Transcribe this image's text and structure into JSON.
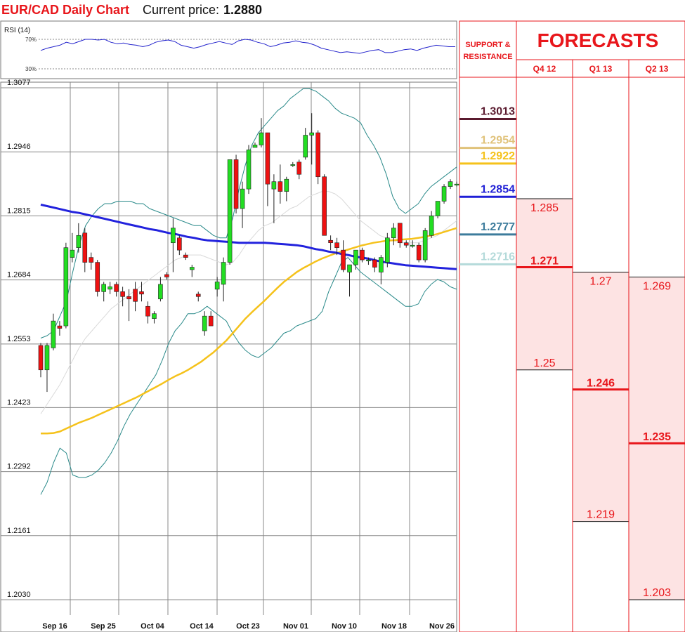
{
  "header": {
    "title": "EUR/CAD Daily Chart",
    "price_label": "Current price:",
    "price_value": "1.2880"
  },
  "rsi": {
    "label": "RSI (14)",
    "level_high": "70%",
    "level_low": "30%",
    "values": [
      55,
      58,
      60,
      62,
      66,
      64,
      67,
      70,
      70,
      69,
      70,
      66,
      64,
      65,
      63,
      62,
      60,
      62,
      66,
      68,
      69,
      67,
      62,
      60,
      58,
      60,
      63,
      65,
      67,
      65,
      63,
      68,
      70,
      69,
      66,
      64,
      60,
      62,
      65,
      66,
      68,
      66,
      65,
      62,
      58,
      56,
      54,
      52,
      53,
      52,
      51,
      53,
      55,
      56,
      52,
      52,
      54,
      56,
      57,
      55,
      58,
      60,
      62,
      61,
      60,
      60
    ]
  },
  "chart_data": {
    "type": "candlestick",
    "title": "EUR/CAD Daily Chart",
    "y_ticks": [
      "1.3077",
      "1.2946",
      "1.2815",
      "1.2684",
      "1.2553",
      "1.2423",
      "1.2292",
      "1.2161",
      "1.2030"
    ],
    "ylim": [
      1.203,
      1.3077
    ],
    "x_ticks": [
      "Sep 16",
      "Sep 25",
      "Oct 04",
      "Oct 14",
      "Oct 23",
      "Nov 01",
      "Nov 10",
      "Nov 18",
      "Nov 26"
    ],
    "grid": true,
    "candles": [
      {
        "d": "Sep 11",
        "o": 1.255,
        "h": 1.2555,
        "l": 1.2485,
        "c": 1.25
      },
      {
        "d": "Sep 12",
        "o": 1.25,
        "h": 1.2555,
        "l": 1.2455,
        "c": 1.255
      },
      {
        "d": "Sep 13",
        "o": 1.2545,
        "h": 1.2615,
        "l": 1.254,
        "c": 1.26
      },
      {
        "d": "Sep 16",
        "o": 1.259,
        "h": 1.26,
        "l": 1.257,
        "c": 1.2585
      },
      {
        "d": "Sep 17",
        "o": 1.259,
        "h": 1.276,
        "l": 1.2585,
        "c": 1.275
      },
      {
        "d": "Sep 18",
        "o": 1.273,
        "h": 1.278,
        "l": 1.272,
        "c": 1.2745
      },
      {
        "d": "Sep 19",
        "o": 1.275,
        "h": 1.28,
        "l": 1.274,
        "c": 1.2775
      },
      {
        "d": "Sep 20",
        "o": 1.278,
        "h": 1.279,
        "l": 1.27,
        "c": 1.272
      },
      {
        "d": "Sep 23",
        "o": 1.273,
        "h": 1.274,
        "l": 1.2705,
        "c": 1.272
      },
      {
        "d": "Sep 24",
        "o": 1.272,
        "h": 1.2725,
        "l": 1.265,
        "c": 1.266
      },
      {
        "d": "Sep 25",
        "o": 1.266,
        "h": 1.268,
        "l": 1.264,
        "c": 1.2675
      },
      {
        "d": "Sep 26",
        "o": 1.2665,
        "h": 1.268,
        "l": 1.2655,
        "c": 1.267
      },
      {
        "d": "Sep 27",
        "o": 1.2675,
        "h": 1.268,
        "l": 1.265,
        "c": 1.266
      },
      {
        "d": "Sep 30",
        "o": 1.266,
        "h": 1.267,
        "l": 1.263,
        "c": 1.265
      },
      {
        "d": "Oct 01",
        "o": 1.265,
        "h": 1.2665,
        "l": 1.26,
        "c": 1.2645
      },
      {
        "d": "Oct 02",
        "o": 1.2665,
        "h": 1.268,
        "l": 1.262,
        "c": 1.264
      },
      {
        "d": "Oct 03",
        "o": 1.266,
        "h": 1.268,
        "l": 1.264,
        "c": 1.2655
      },
      {
        "d": "Oct 04",
        "o": 1.263,
        "h": 1.264,
        "l": 1.2595,
        "c": 1.261
      },
      {
        "d": "Oct 07",
        "o": 1.2605,
        "h": 1.262,
        "l": 1.2595,
        "c": 1.2615
      },
      {
        "d": "Oct 08",
        "o": 1.2645,
        "h": 1.269,
        "l": 1.264,
        "c": 1.2675
      },
      {
        "d": "Oct 09",
        "o": 1.2695,
        "h": 1.27,
        "l": 1.2685,
        "c": 1.269
      },
      {
        "d": "Oct 10",
        "o": 1.276,
        "h": 1.281,
        "l": 1.27,
        "c": 1.279
      },
      {
        "d": "Oct 11",
        "o": 1.277,
        "h": 1.2775,
        "l": 1.2735,
        "c": 1.2745
      },
      {
        "d": "Oct 14",
        "o": 1.2735,
        "h": 1.274,
        "l": 1.2725,
        "c": 1.273
      },
      {
        "d": "Oct 15",
        "o": 1.2705,
        "h": 1.2715,
        "l": 1.269,
        "c": 1.271
      },
      {
        "d": "Oct 16",
        "o": 1.2655,
        "h": 1.266,
        "l": 1.264,
        "c": 1.265
      },
      {
        "d": "Oct 17",
        "o": 1.258,
        "h": 1.262,
        "l": 1.257,
        "c": 1.261
      },
      {
        "d": "Oct 18",
        "o": 1.261,
        "h": 1.262,
        "l": 1.259,
        "c": 1.259
      },
      {
        "d": "Oct 21",
        "o": 1.2665,
        "h": 1.269,
        "l": 1.265,
        "c": 1.268
      },
      {
        "d": "Oct 22",
        "o": 1.2675,
        "h": 1.273,
        "l": 1.264,
        "c": 1.272
      },
      {
        "d": "Oct 23",
        "o": 1.272,
        "h": 1.293,
        "l": 1.2715,
        "c": 1.293
      },
      {
        "d": "Oct 24",
        "o": 1.293,
        "h": 1.294,
        "l": 1.282,
        "c": 1.283
      },
      {
        "d": "Oct 25",
        "o": 1.283,
        "h": 1.2885,
        "l": 1.279,
        "c": 1.287
      },
      {
        "d": "Oct 28",
        "o": 1.287,
        "h": 1.296,
        "l": 1.286,
        "c": 1.295
      },
      {
        "d": "Oct 29",
        "o": 1.2955,
        "h": 1.2965,
        "l": 1.2955,
        "c": 1.296
      },
      {
        "d": "Oct 30",
        "o": 1.296,
        "h": 1.3015,
        "l": 1.2955,
        "c": 1.2985
      },
      {
        "d": "Oct 31",
        "o": 1.2985,
        "h": 1.2985,
        "l": 1.2835,
        "c": 1.288
      },
      {
        "d": "Nov 01",
        "o": 1.287,
        "h": 1.29,
        "l": 1.28,
        "c": 1.2885
      },
      {
        "d": "Nov 04",
        "o": 1.2885,
        "h": 1.292,
        "l": 1.284,
        "c": 1.2865
      },
      {
        "d": "Nov 05",
        "o": 1.2865,
        "h": 1.2895,
        "l": 1.2845,
        "c": 1.289
      },
      {
        "d": "Nov 06",
        "o": 1.292,
        "h": 1.2925,
        "l": 1.2915,
        "c": 1.292
      },
      {
        "d": "Nov 07",
        "o": 1.2925,
        "h": 1.293,
        "l": 1.289,
        "c": 1.29
      },
      {
        "d": "Nov 08",
        "o": 1.2935,
        "h": 1.2995,
        "l": 1.293,
        "c": 1.298
      },
      {
        "d": "Nov 11",
        "o": 1.298,
        "h": 1.3025,
        "l": 1.292,
        "c": 1.2985
      },
      {
        "d": "Nov 12",
        "o": 1.2985,
        "h": 1.299,
        "l": 1.288,
        "c": 1.2895
      },
      {
        "d": "Nov 13",
        "o": 1.2895,
        "h": 1.29,
        "l": 1.2775,
        "c": 1.2775
      },
      {
        "d": "Nov 14",
        "o": 1.2765,
        "h": 1.2775,
        "l": 1.2745,
        "c": 1.276
      },
      {
        "d": "Nov 15",
        "o": 1.276,
        "h": 1.277,
        "l": 1.2735,
        "c": 1.275
      },
      {
        "d": "Nov 18",
        "o": 1.2745,
        "h": 1.2765,
        "l": 1.27,
        "c": 1.2705
      },
      {
        "d": "Nov 19",
        "o": 1.27,
        "h": 1.2715,
        "l": 1.265,
        "c": 1.2715
      },
      {
        "d": "Nov 20",
        "o": 1.2715,
        "h": 1.2745,
        "l": 1.2705,
        "c": 1.2745
      },
      {
        "d": "Nov 21",
        "o": 1.2745,
        "h": 1.275,
        "l": 1.272,
        "c": 1.2725
      },
      {
        "d": "Nov 22",
        "o": 1.2725,
        "h": 1.273,
        "l": 1.2715,
        "c": 1.2725
      },
      {
        "d": "Nov 25",
        "o": 1.2725,
        "h": 1.273,
        "l": 1.27,
        "c": 1.271
      },
      {
        "d": "Nov 26",
        "o": 1.27,
        "h": 1.2735,
        "l": 1.2675,
        "c": 1.273
      },
      {
        "d": "Nov 27",
        "o": 1.272,
        "h": 1.278,
        "l": 1.271,
        "c": 1.277
      },
      {
        "d": "Nov 28",
        "o": 1.277,
        "h": 1.28,
        "l": 1.2755,
        "c": 1.279
      },
      {
        "d": "Nov 29",
        "o": 1.28,
        "h": 1.28,
        "l": 1.275,
        "c": 1.276
      },
      {
        "d": "Dec 02",
        "o": 1.276,
        "h": 1.2765,
        "l": 1.275,
        "c": 1.2755
      },
      {
        "d": "Dec 03",
        "o": 1.2755,
        "h": 1.2765,
        "l": 1.275,
        "c": 1.2755
      },
      {
        "d": "Dec 04",
        "o": 1.2755,
        "h": 1.276,
        "l": 1.272,
        "c": 1.2725
      },
      {
        "d": "Dec 05",
        "o": 1.2725,
        "h": 1.279,
        "l": 1.272,
        "c": 1.2785
      },
      {
        "d": "Dec 06",
        "o": 1.2775,
        "h": 1.2825,
        "l": 1.277,
        "c": 1.2815
      },
      {
        "d": "Dec 09",
        "o": 1.2815,
        "h": 1.2845,
        "l": 1.281,
        "c": 1.2845
      },
      {
        "d": "Dec 10",
        "o": 1.2845,
        "h": 1.288,
        "l": 1.284,
        "c": 1.2875
      },
      {
        "d": "Dec 11",
        "o": 1.2875,
        "h": 1.289,
        "l": 1.287,
        "c": 1.2885
      },
      {
        "d": "Dec 12",
        "o": 1.288,
        "h": 1.2885,
        "l": 1.2875,
        "c": 1.288
      }
    ],
    "lines": {
      "bollinger_upper": [
        1.2565,
        1.257,
        1.258,
        1.261,
        1.264,
        1.27,
        1.2755,
        1.2795,
        1.2815,
        1.283,
        1.284,
        1.284,
        1.2845,
        1.2845,
        1.2845,
        1.284,
        1.284,
        1.283,
        1.2825,
        1.282,
        1.2815,
        1.281,
        1.2805,
        1.28,
        1.2795,
        1.2795,
        1.2785,
        1.2775,
        1.277,
        1.277,
        1.281,
        1.287,
        1.292,
        1.296,
        1.2985,
        1.3,
        1.3015,
        1.303,
        1.304,
        1.3055,
        1.3065,
        1.3075,
        1.3075,
        1.307,
        1.306,
        1.305,
        1.3035,
        1.3025,
        1.302,
        1.3015,
        1.3005,
        1.298,
        1.296,
        1.2935,
        1.29,
        1.2855,
        1.283,
        1.282,
        1.283,
        1.284,
        1.286,
        1.2875,
        1.2885,
        1.2895,
        1.2905,
        1.2915
      ],
      "bollinger_mid": [
        1.241,
        1.243,
        1.245,
        1.247,
        1.2495,
        1.252,
        1.2545,
        1.2565,
        1.258,
        1.2595,
        1.261,
        1.2625,
        1.2635,
        1.2645,
        1.2655,
        1.2665,
        1.2675,
        1.2685,
        1.2695,
        1.2705,
        1.2715,
        1.2725,
        1.273,
        1.2735,
        1.2735,
        1.2735,
        1.273,
        1.2725,
        1.272,
        1.2715,
        1.272,
        1.2735,
        1.2755,
        1.277,
        1.2785,
        1.2795,
        1.28,
        1.281,
        1.282,
        1.283,
        1.2835,
        1.2845,
        1.2855,
        1.286,
        1.2865,
        1.2865,
        1.286,
        1.285,
        1.2835,
        1.282,
        1.2805,
        1.2795,
        1.2785,
        1.2775,
        1.277,
        1.2765,
        1.276,
        1.276,
        1.276,
        1.276,
        1.2765,
        1.277,
        1.2775,
        1.2785,
        1.2795,
        1.2805
      ],
      "bollinger_lower": [
        1.2245,
        1.227,
        1.231,
        1.234,
        1.233,
        1.2285,
        1.228,
        1.228,
        1.2285,
        1.2295,
        1.231,
        1.233,
        1.2355,
        1.2385,
        1.241,
        1.243,
        1.245,
        1.247,
        1.249,
        1.252,
        1.2555,
        1.258,
        1.2595,
        1.2615,
        1.2615,
        1.262,
        1.263,
        1.262,
        1.261,
        1.26,
        1.2575,
        1.2555,
        1.254,
        1.253,
        1.2525,
        1.2535,
        1.2545,
        1.256,
        1.2575,
        1.258,
        1.259,
        1.2595,
        1.26,
        1.2605,
        1.262,
        1.266,
        1.269,
        1.272,
        1.273,
        1.2715,
        1.27,
        1.269,
        1.268,
        1.267,
        1.266,
        1.265,
        1.264,
        1.263,
        1.263,
        1.2635,
        1.266,
        1.2675,
        1.2685,
        1.268,
        1.267,
        1.2665
      ],
      "ma_blue": [
        1.2838,
        1.2835,
        1.2832,
        1.2829,
        1.2826,
        1.2823,
        1.2821,
        1.2818,
        1.2815,
        1.2812,
        1.2809,
        1.2806,
        1.2803,
        1.28,
        1.2797,
        1.2794,
        1.2791,
        1.2788,
        1.2786,
        1.2783,
        1.278,
        1.2778,
        1.2775,
        1.2772,
        1.277,
        1.2767,
        1.2765,
        1.2764,
        1.2763,
        1.2762,
        1.2761,
        1.276,
        1.276,
        1.276,
        1.276,
        1.276,
        1.2759,
        1.2758,
        1.2757,
        1.2756,
        1.2755,
        1.2753,
        1.275,
        1.2747,
        1.2745,
        1.2742,
        1.274,
        1.2737,
        1.2735,
        1.2732,
        1.273,
        1.2728,
        1.2725,
        1.2722,
        1.272,
        1.2718,
        1.2716,
        1.2714,
        1.2713,
        1.2712,
        1.2711,
        1.271,
        1.2709,
        1.2708,
        1.2707,
        1.2706
      ],
      "ma_yellow": [
        1.237,
        1.237,
        1.2371,
        1.2374,
        1.238,
        1.2386,
        1.2392,
        1.2397,
        1.2402,
        1.2408,
        1.2414,
        1.242,
        1.2426,
        1.2432,
        1.2438,
        1.2444,
        1.2451,
        1.2458,
        1.2465,
        1.2472,
        1.248,
        1.2487,
        1.2493,
        1.25,
        1.2508,
        1.2516,
        1.2526,
        1.2536,
        1.2548,
        1.256,
        1.2575,
        1.259,
        1.2605,
        1.2618,
        1.263,
        1.2642,
        1.2655,
        1.2668,
        1.268,
        1.269,
        1.27,
        1.2708,
        1.2715,
        1.2722,
        1.2728,
        1.2733,
        1.2738,
        1.2742,
        1.2746,
        1.275,
        1.2754,
        1.2757,
        1.276,
        1.2762,
        1.2764,
        1.2765,
        1.2766,
        1.2767,
        1.2768,
        1.277,
        1.2772,
        1.2775,
        1.2778,
        1.2782,
        1.2786,
        1.279
      ]
    }
  },
  "support_resistance": {
    "header_line1": "SUPPORT &",
    "header_line2": "RESISTANCE",
    "levels": [
      {
        "value": "1.3013",
        "color": "#5a1a2e"
      },
      {
        "value": "1.2954",
        "color": "#e0c27a"
      },
      {
        "value": "1.2922",
        "color": "#f5c21b"
      },
      {
        "value": "1.2854",
        "color": "#1f1fd6"
      },
      {
        "value": "1.2777",
        "color": "#3d7c9c"
      },
      {
        "value": "1.2716",
        "color": "#b4dada"
      }
    ]
  },
  "forecasts": {
    "title": "FORECASTS",
    "columns": [
      {
        "label": "Q4 12",
        "high": "1.285",
        "mid": "1.271",
        "low": "1.25"
      },
      {
        "label": "Q1 13",
        "high": "1.27",
        "mid": "1.246",
        "low": "1.219"
      },
      {
        "label": "Q2 13",
        "high": "1.269",
        "mid": "1.235",
        "low": "1.203"
      }
    ]
  },
  "colors": {
    "bull": "#22dd22",
    "bear": "#ee1111",
    "bollinger": "#2a8a8a",
    "ma_blue": "#2222dd",
    "ma_yellow": "#f5c21b",
    "accent_red": "#e8161b",
    "forecast_fill": "#fde3e3"
  }
}
